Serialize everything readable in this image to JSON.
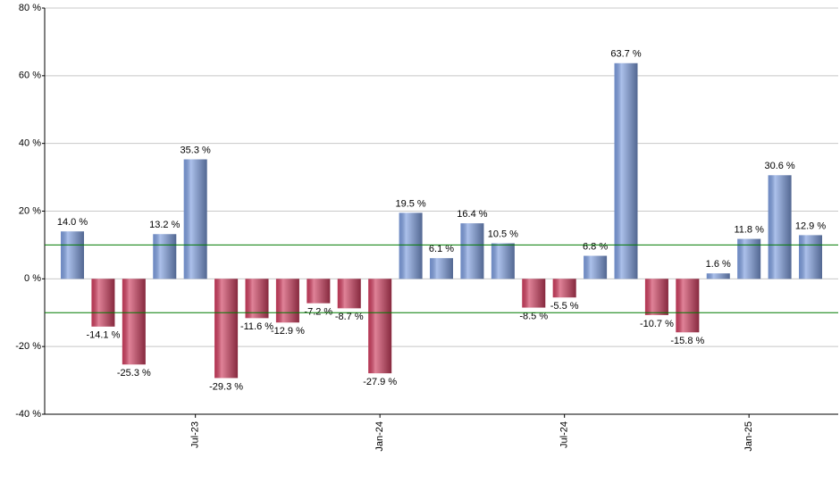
{
  "chart_data": {
    "type": "bar",
    "categories": [
      null,
      null,
      null,
      null,
      "Jul-23",
      null,
      null,
      null,
      null,
      null,
      "Jan-24",
      null,
      null,
      null,
      null,
      null,
      "Jul-24",
      null,
      null,
      null,
      null,
      null,
      "Jan-25",
      null,
      null
    ],
    "values": [
      14.0,
      -14.1,
      -25.3,
      13.2,
      35.3,
      -29.3,
      -11.6,
      -12.9,
      -7.2,
      -8.7,
      -27.9,
      19.5,
      6.1,
      16.4,
      10.5,
      -8.5,
      -5.5,
      6.8,
      63.7,
      -10.7,
      -15.8,
      1.6,
      11.8,
      30.6,
      12.9
    ],
    "value_labels": [
      "14.0 %",
      "-14.1 %",
      "-25.3 %",
      "13.2 %",
      "35.3 %",
      "-29.3 %",
      "-11.6 %",
      "-12.9 %",
      "-7.2 %",
      "-8.7 %",
      "-27.9 %",
      "19.5 %",
      "6.1 %",
      "16.4 %",
      "10.5 %",
      "-8.5 %",
      "-5.5 %",
      "6.8 %",
      "63.7 %",
      "-10.7 %",
      "-15.8 %",
      "1.6 %",
      "11.8 %",
      "30.6 %",
      "12.9 %"
    ],
    "positive_color": "#7f9fe0",
    "negative_color": "#cf3f60",
    "ylim": [
      -40,
      80
    ],
    "yticks": [
      {
        "value": -40,
        "label": "-40 %"
      },
      {
        "value": -20,
        "label": "-20 %"
      },
      {
        "value": 0,
        "label": "0 %"
      },
      {
        "value": 20,
        "label": "20 %"
      },
      {
        "value": 40,
        "label": "40 %"
      },
      {
        "value": 60,
        "label": "60 %"
      },
      {
        "value": 80,
        "label": "80 %"
      }
    ],
    "reference_lines": [
      10,
      -10
    ],
    "reference_color": "#007a00",
    "grid": true
  }
}
